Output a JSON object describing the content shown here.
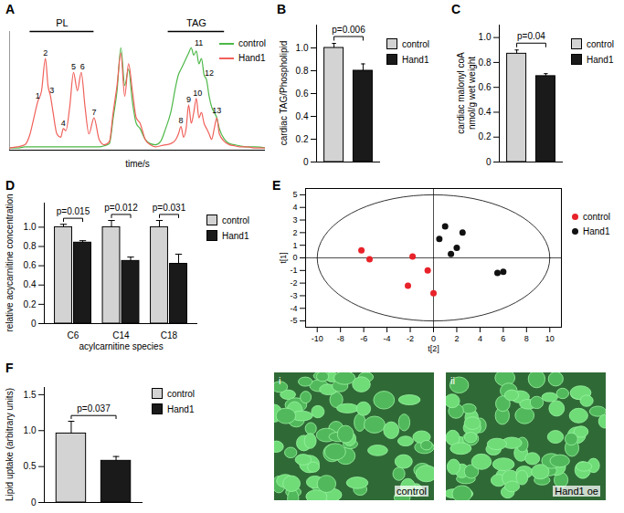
{
  "chart_data": [
    {
      "panel": "A",
      "type": "line",
      "xlabel": "time/s",
      "tick_labels": false,
      "legend": "top-right",
      "xlim": [
        0,
        100
      ],
      "ylim": [
        0,
        1.1
      ],
      "x": [
        0,
        3,
        6,
        8,
        9.5,
        11,
        12.5,
        14,
        15,
        16,
        17,
        18.5,
        20,
        21,
        22,
        23.5,
        25,
        26.5,
        28,
        29.5,
        31,
        33,
        35,
        37,
        39,
        40.5,
        42,
        43.5,
        45,
        46.5,
        48,
        49.5,
        51,
        53,
        55,
        57,
        59,
        61,
        63,
        65,
        66,
        67,
        68,
        69,
        70,
        71,
        72,
        73,
        74,
        75,
        76,
        77,
        78,
        79,
        80,
        81,
        82,
        84,
        86,
        88,
        90,
        93,
        96,
        100
      ],
      "series": [
        {
          "name": "control",
          "color": "#4db848",
          "values": [
            0.02,
            0.02,
            0.03,
            0.03,
            0.03,
            0.03,
            0.03,
            0.03,
            0.03,
            0.03,
            0.03,
            0.03,
            0.03,
            0.03,
            0.03,
            0.03,
            0.03,
            0.03,
            0.03,
            0.03,
            0.03,
            0.03,
            0.03,
            0.04,
            0.06,
            0.3,
            0.55,
            0.95,
            0.6,
            0.75,
            0.45,
            0.25,
            0.2,
            0.1,
            0.06,
            0.05,
            0.08,
            0.2,
            0.35,
            0.6,
            0.7,
            0.75,
            0.8,
            0.85,
            0.9,
            0.95,
            0.88,
            0.92,
            0.8,
            0.85,
            0.7,
            0.65,
            0.5,
            0.4,
            0.35,
            0.3,
            0.2,
            0.1,
            0.06,
            0.05,
            0.04,
            0.03,
            0.03,
            0.02
          ]
        },
        {
          "name": "Hand1",
          "color": "#f0605a",
          "values": [
            0.02,
            0.03,
            0.05,
            0.15,
            0.3,
            0.45,
            0.55,
            0.85,
            0.6,
            0.5,
            0.35,
            0.15,
            0.12,
            0.2,
            0.18,
            0.4,
            0.72,
            0.55,
            0.72,
            0.4,
            0.15,
            0.3,
            0.1,
            0.05,
            0.08,
            0.35,
            0.6,
            0.9,
            0.5,
            0.8,
            0.55,
            0.3,
            0.25,
            0.1,
            0.05,
            0.03,
            0.04,
            0.05,
            0.06,
            0.1,
            0.15,
            0.22,
            0.12,
            0.2,
            0.42,
            0.25,
            0.35,
            0.48,
            0.3,
            0.35,
            0.25,
            0.2,
            0.15,
            0.1,
            0.2,
            0.3,
            0.15,
            0.08,
            0.05,
            0.04,
            0.03,
            0.03,
            0.02,
            0.02
          ]
        }
      ],
      "regions": [
        {
          "text": "PL",
          "x1": 8,
          "x2": 33
        },
        {
          "text": "TAG",
          "x1": 62,
          "x2": 84
        }
      ],
      "annotations": [
        {
          "text": "1",
          "x": 11,
          "y": 0.45
        },
        {
          "text": "2",
          "x": 14,
          "y": 0.85
        },
        {
          "text": "3",
          "x": 16.5,
          "y": 0.5
        },
        {
          "text": "4",
          "x": 21,
          "y": 0.2
        },
        {
          "text": "5",
          "x": 25,
          "y": 0.72
        },
        {
          "text": "6",
          "x": 28.5,
          "y": 0.72
        },
        {
          "text": "7",
          "x": 33,
          "y": 0.3
        },
        {
          "text": "8",
          "x": 67,
          "y": 0.22
        },
        {
          "text": "9",
          "x": 70,
          "y": 0.42
        },
        {
          "text": "10",
          "x": 73.5,
          "y": 0.48
        },
        {
          "text": "11",
          "x": 74,
          "y": 0.94
        },
        {
          "text": "12",
          "x": 78,
          "y": 0.66
        },
        {
          "text": "13",
          "x": 81,
          "y": 0.32
        }
      ]
    },
    {
      "panel": "B",
      "type": "bar",
      "ylabel": "cardiac TAG/Phospholipid",
      "tick_labels": "y",
      "legend": "right",
      "categories": [
        "control",
        "Hand1"
      ],
      "values": [
        1.0,
        0.8
      ],
      "errors": [
        0.04,
        0.06
      ],
      "colors": [
        "#d3d3d3",
        "#1a1a1a"
      ],
      "ylim": [
        0,
        1.2
      ],
      "yticks": [
        0,
        0.2,
        0.4,
        0.6,
        0.8,
        {
          "value": 1,
          "label": "1.0"
        }
      ],
      "p_values": [
        "p=0.006"
      ]
    },
    {
      "panel": "C",
      "type": "bar",
      "ylabel": "cardiac malonyl coA\nnmol/g wet weight",
      "tick_labels": "y",
      "legend": "right",
      "categories": [
        "control",
        "Hand1"
      ],
      "values": [
        0.87,
        0.69
      ],
      "errors": [
        0.03,
        0.02
      ],
      "colors": [
        "#d3d3d3",
        "#1a1a1a"
      ],
      "ylim": [
        0,
        1.1
      ],
      "yticks": [
        0,
        0.2,
        0.4,
        0.6,
        0.8,
        {
          "value": 1,
          "label": "1.0"
        }
      ],
      "p_values": [
        "p=0.04"
      ]
    },
    {
      "panel": "D",
      "type": "bar",
      "ylabel": "relative acycarnitine concentration",
      "xlabel": "acylcarnitine species",
      "legend": "right",
      "categories": [
        "C6",
        "C14",
        "C18"
      ],
      "series": [
        {
          "name": "control",
          "color": "#d3d3d3",
          "values": [
            1.0,
            1.0,
            1.0
          ],
          "errors": [
            0.03,
            0.07,
            0.07
          ]
        },
        {
          "name": "Hand1",
          "color": "#1a1a1a",
          "values": [
            0.84,
            0.65,
            0.62
          ],
          "errors": [
            0.02,
            0.04,
            0.1
          ]
        }
      ],
      "ylim": [
        0,
        1.25
      ],
      "yticks": [
        0,
        0.2,
        0.4,
        0.6,
        0.8,
        {
          "value": 1,
          "label": "1.0"
        }
      ],
      "p_values": [
        "p=0.015",
        "p=0.012",
        "p=0.031"
      ]
    },
    {
      "panel": "E",
      "type": "scatter",
      "xlabel": "t[2]",
      "ylabel": "t[1]",
      "legend": "right",
      "xlim": [
        -11,
        11
      ],
      "ylim": [
        -5.5,
        5.5
      ],
      "xticks": [
        -10,
        -8,
        -6,
        -4,
        -2,
        0,
        2,
        4,
        6,
        8,
        10
      ],
      "yticks": [
        -5,
        -4,
        -3,
        -2,
        -1,
        0,
        1,
        2,
        3,
        4,
        5
      ],
      "ellipse": {
        "x_radius": 10,
        "y_radius": 5
      },
      "series": [
        {
          "name": "control",
          "color": "#e8222a",
          "x": [
            -6.2,
            -5.5,
            -1.8,
            -0.5,
            -2.2,
            0
          ],
          "y": [
            0.6,
            -0.1,
            0.1,
            -1.0,
            -2.2,
            -2.8
          ]
        },
        {
          "name": "Hand1",
          "color": "#111111",
          "x": [
            1,
            2.5,
            0.5,
            2,
            1.5,
            5.5,
            6
          ],
          "y": [
            2.5,
            2.0,
            1.5,
            0.8,
            0.3,
            -1.2,
            -1.1
          ]
        }
      ]
    },
    {
      "panel": "F",
      "type": "bar",
      "ylabel": "Lipid uptake (arbitrary units)",
      "tick_labels": "y",
      "legend": "right",
      "categories": [
        "control",
        "Hand1"
      ],
      "values": [
        0.96,
        0.58
      ],
      "errors": [
        0.17,
        0.06
      ],
      "colors": [
        "#d3d3d3",
        "#1a1a1a"
      ],
      "ylim": [
        0,
        1.6
      ],
      "yticks": [
        0,
        0.5,
        {
          "value": 1,
          "label": "1.0"
        },
        1.5
      ],
      "p_values": [
        "p=0.037"
      ],
      "insets": [
        {
          "label": "i",
          "caption": "control"
        },
        {
          "label": "ii",
          "caption": "Hand1 oe"
        }
      ]
    }
  ]
}
